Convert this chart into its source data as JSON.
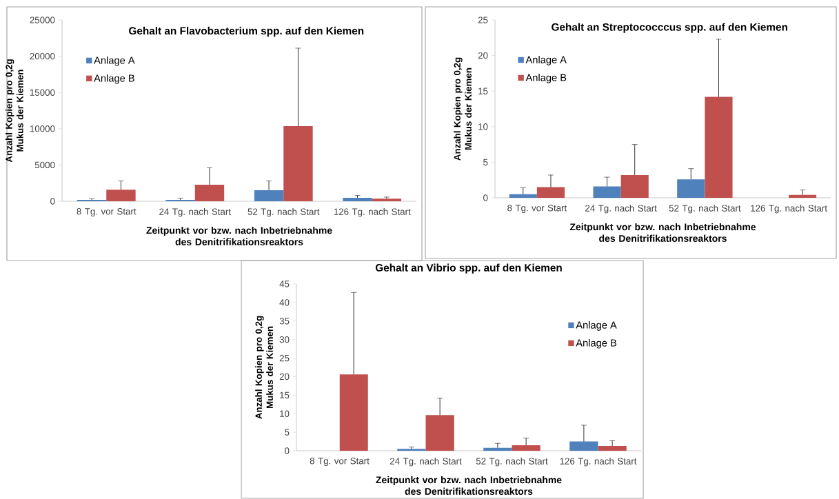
{
  "chart_data": [
    {
      "type": "bar",
      "title": "Gehalt an Flavobacterium spp. auf den Kiemen",
      "xlabel": "Zeitpunkt vor bzw. nach Inbetriebnahme des Denitrifikationsreaktors",
      "ylabel": "Anzahl Kopien pro 0,2g Mukus der Kiemen",
      "categories": [
        "8 Tg. vor Start",
        "24 Tg. nach Start",
        "52 Tg. nach Start",
        "126 Tg. nach Start"
      ],
      "series": [
        {
          "name": "Anlage A",
          "color": "#4f81bd",
          "values": [
            200,
            200,
            1530,
            470
          ],
          "errors": [
            [
              200,
              330
            ],
            [
              200,
              400
            ],
            [
              1530,
              2800
            ],
            [
              470,
              800
            ]
          ]
        },
        {
          "name": "Anlage B",
          "color": "#c0504d",
          "values": [
            1600,
            2290,
            10360,
            360
          ],
          "errors": [
            [
              1600,
              2800
            ],
            [
              2290,
              4620
            ],
            [
              10360,
              21110
            ],
            [
              360,
              580
            ]
          ]
        }
      ],
      "ylim": [
        0,
        25000
      ],
      "yticks": [
        0,
        5000,
        10000,
        15000,
        20000,
        25000
      ],
      "legend": "top left"
    },
    {
      "type": "bar",
      "title": "Gehalt an Streptococccus spp. auf den Kiemen",
      "xlabel": "Zeitpunkt vor bzw. nach Inbetriebnahme des Denitrifikationsreaktors",
      "ylabel": "Anzahl Kopien pro 0,2g Mukus der Kiemen",
      "categories": [
        "8 Tg. vor Start",
        "24 Tg. nach Start",
        "52 Tg. nach Start",
        "126 Tg. nach Start"
      ],
      "series": [
        {
          "name": "Anlage A",
          "color": "#4f81bd",
          "values": [
            0.5,
            1.6,
            2.6,
            null
          ],
          "errors": [
            [
              0.5,
              1.4
            ],
            [
              1.6,
              2.9
            ],
            [
              2.6,
              4.1
            ],
            null
          ]
        },
        {
          "name": "Anlage B",
          "color": "#c0504d",
          "values": [
            1.5,
            3.2,
            14.2,
            0.4
          ],
          "errors": [
            [
              1.5,
              3.2
            ],
            [
              3.2,
              7.5
            ],
            [
              14.2,
              22.3
            ],
            [
              0.4,
              1.1
            ]
          ]
        }
      ],
      "ylim": [
        0,
        25
      ],
      "yticks": [
        0,
        5,
        10,
        15,
        20,
        25
      ],
      "legend": "top left"
    },
    {
      "type": "bar",
      "title": "Gehalt an Vibrio spp. auf den Kiemen",
      "xlabel": "Zeitpunkt vor bzw. nach Inbetriebnahme des Denitrifikationsreaktors",
      "ylabel": "Anzahl Kopien pro 0,2g Mukus der Kiemen",
      "categories": [
        "8 Tg. vor Start",
        "24 Tg. nach Start",
        "52 Tg. nach Start",
        "126 Tg. nach Start"
      ],
      "series": [
        {
          "name": "Anlage A",
          "color": "#4f81bd",
          "values": [
            null,
            0.5,
            0.8,
            2.5
          ],
          "errors": [
            null,
            [
              0.5,
              1.0
            ],
            [
              0.8,
              2.0
            ],
            [
              2.5,
              6.9
            ]
          ]
        },
        {
          "name": "Anlage B",
          "color": "#c0504d",
          "values": [
            20.6,
            9.6,
            1.5,
            1.3
          ],
          "errors": [
            [
              20.6,
              42.7
            ],
            [
              9.6,
              14.2
            ],
            [
              1.5,
              3.4
            ],
            [
              1.3,
              2.7
            ]
          ]
        }
      ],
      "ylim": [
        0,
        45
      ],
      "yticks": [
        0,
        5,
        10,
        15,
        20,
        25,
        30,
        35,
        40,
        45
      ],
      "legend": "right"
    }
  ]
}
